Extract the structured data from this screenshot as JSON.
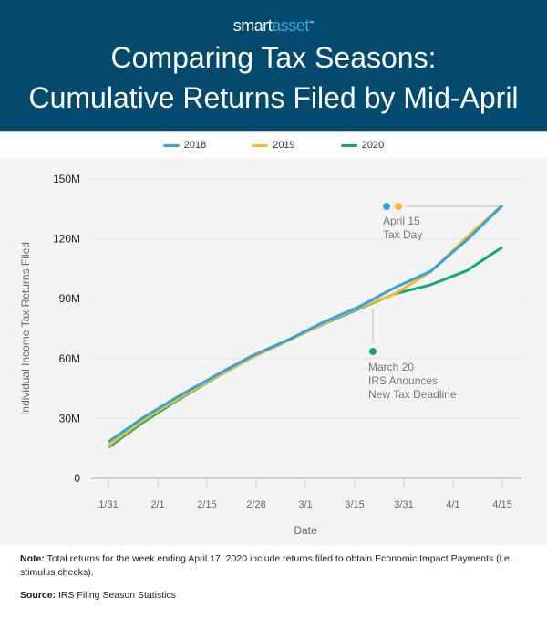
{
  "header": {
    "logo_left": "smart",
    "logo_right": "asset",
    "logo_tm": "™",
    "title_line1": "Comparing Tax Seasons:",
    "title_line2": "Cumulative Returns Filed by Mid-April"
  },
  "colors": {
    "header_bg": "#034a6e",
    "2018": "#2ea7e0",
    "2019": "#fbb829",
    "2020": "#10a874"
  },
  "chart_data": {
    "type": "line",
    "xlabel": "Date",
    "ylabel": "Individual Income Tax Returns Filed",
    "x_ticks": [
      "1/31",
      "2/1",
      "2/15",
      "2/28",
      "3/1",
      "3/15",
      "3/31",
      "4/1",
      "4/15"
    ],
    "y_ticks": [
      "0",
      "30M",
      "60M",
      "90M",
      "120M",
      "150M"
    ],
    "ylim": [
      0,
      150
    ],
    "y_unit": "millions",
    "grid": true,
    "legend_position": "top",
    "series": [
      {
        "name": "2018",
        "color": "#2ea7e0",
        "values": [
          18.3,
          30.8,
          41.6,
          51.6,
          61.3,
          69.2,
          78.2,
          86,
          95.6,
          103.8,
          119.3,
          136.7
        ]
      },
      {
        "name": "2019",
        "color": "#fbb829",
        "values": [
          16.5,
          29.5,
          40.5,
          50.8,
          60.5,
          68.8,
          77.5,
          85.5,
          92.5,
          103.5,
          120.7,
          136.9
        ]
      },
      {
        "name": "2020",
        "color": "#10a874",
        "values": [
          15.6,
          28.5,
          40,
          50.6,
          60.5,
          69,
          77.3,
          85,
          92.5,
          97,
          104,
          115.8
        ]
      }
    ],
    "annotations": [
      {
        "lines": [
          "April 15",
          "Tax Day"
        ]
      },
      {
        "lines": [
          "March 20",
          "IRS Anounces",
          "New Tax Deadline"
        ]
      }
    ]
  },
  "notes": {
    "note_label": "Note:",
    "note_text": " Total returns for the week ending April 17, 2020 include returns filed to obtain Economic Impact Payments (i.e. stimulus checks).",
    "source_label": "Source:",
    "source_text": " IRS Filing Season Statistics"
  }
}
